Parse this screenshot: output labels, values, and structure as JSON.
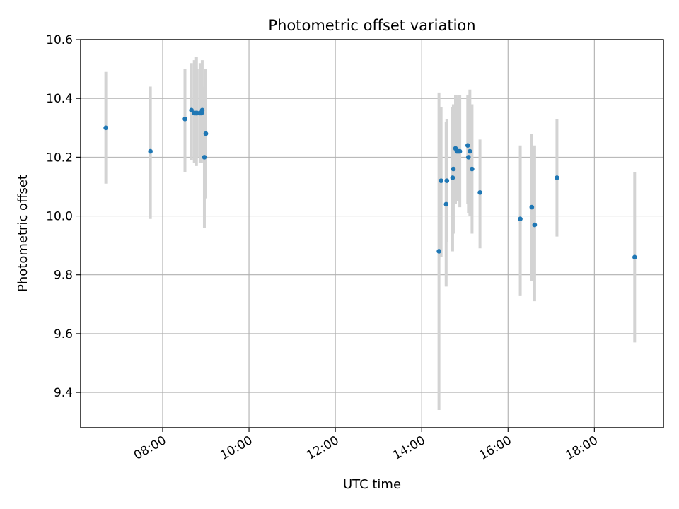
{
  "chart_data": {
    "type": "scatter",
    "title": "Photometric offset variation",
    "xlabel": "UTC time",
    "ylabel": "Photometric offset",
    "x_axis_kind": "time",
    "xlim": [
      "06:06",
      "19:36"
    ],
    "ylim": [
      9.28,
      10.6
    ],
    "x_ticks": [
      "08:00",
      "10:00",
      "12:00",
      "14:00",
      "16:00",
      "18:00"
    ],
    "y_ticks": [
      "9.4",
      "9.6",
      "9.8",
      "10.0",
      "10.2",
      "10.4",
      "10.6"
    ],
    "grid": true,
    "legend": "none",
    "tick_label_rotation": "30 degrees",
    "colors": {
      "point": "#1f77b4",
      "error_bar": "#d3d3d3",
      "grid": "#b0b0b0"
    },
    "series": [
      {
        "points": [
          {
            "x": "06:41",
            "y": 10.3,
            "err_low": 10.11,
            "err_high": 10.49
          },
          {
            "x": "07:43",
            "y": 10.22,
            "err_low": 9.99,
            "err_high": 10.44
          },
          {
            "x": "08:31",
            "y": 10.33,
            "err_low": 10.15,
            "err_high": 10.5
          },
          {
            "x": "08:40",
            "y": 10.36,
            "err_low": 10.19,
            "err_high": 10.52
          },
          {
            "x": "08:44",
            "y": 10.35,
            "err_low": 10.18,
            "err_high": 10.53
          },
          {
            "x": "08:46",
            "y": 10.35,
            "err_low": 10.18,
            "err_high": 10.54
          },
          {
            "x": "08:47",
            "y": 10.35,
            "err_low": 10.17,
            "err_high": 10.54
          },
          {
            "x": "08:48",
            "y": 10.35,
            "err_low": 10.2,
            "err_high": 10.5
          },
          {
            "x": "08:52",
            "y": 10.35,
            "err_low": 10.18,
            "err_high": 10.52
          },
          {
            "x": "08:54",
            "y": 10.35,
            "err_low": 10.18,
            "err_high": 10.51
          },
          {
            "x": "08:55",
            "y": 10.36,
            "err_low": 10.19,
            "err_high": 10.53
          },
          {
            "x": "08:58",
            "y": 10.2,
            "err_low": 9.96,
            "err_high": 10.44
          },
          {
            "x": "09:00",
            "y": 10.28,
            "err_low": 10.06,
            "err_high": 10.5
          },
          {
            "x": "14:24",
            "y": 9.88,
            "err_low": 9.34,
            "err_high": 10.42
          },
          {
            "x": "14:27",
            "y": 10.12,
            "err_low": 9.86,
            "err_high": 10.37
          },
          {
            "x": "14:34",
            "y": 10.04,
            "err_low": 9.76,
            "err_high": 10.32
          },
          {
            "x": "14:35",
            "y": 10.12,
            "err_low": 9.91,
            "err_high": 10.33
          },
          {
            "x": "14:43",
            "y": 10.13,
            "err_low": 9.88,
            "err_high": 10.37
          },
          {
            "x": "14:44",
            "y": 10.16,
            "err_low": 9.94,
            "err_high": 10.38
          },
          {
            "x": "14:47",
            "y": 10.23,
            "err_low": 10.04,
            "err_high": 10.41
          },
          {
            "x": "14:49",
            "y": 10.22,
            "err_low": 10.05,
            "err_high": 10.4
          },
          {
            "x": "14:51",
            "y": 10.22,
            "err_low": 10.05,
            "err_high": 10.41
          },
          {
            "x": "14:53",
            "y": 10.22,
            "err_low": 10.03,
            "err_high": 10.41
          },
          {
            "x": "15:04",
            "y": 10.24,
            "err_low": 10.04,
            "err_high": 10.41
          },
          {
            "x": "15:05",
            "y": 10.2,
            "err_low": 10.01,
            "err_high": 10.4
          },
          {
            "x": "15:07",
            "y": 10.22,
            "err_low": 10.0,
            "err_high": 10.43
          },
          {
            "x": "15:10",
            "y": 10.16,
            "err_low": 9.94,
            "err_high": 10.38
          },
          {
            "x": "15:21",
            "y": 10.08,
            "err_low": 9.89,
            "err_high": 10.26
          },
          {
            "x": "16:17",
            "y": 9.99,
            "err_low": 9.73,
            "err_high": 10.24
          },
          {
            "x": "16:33",
            "y": 10.03,
            "err_low": 9.78,
            "err_high": 10.28
          },
          {
            "x": "16:37",
            "y": 9.97,
            "err_low": 9.71,
            "err_high": 10.24
          },
          {
            "x": "17:08",
            "y": 10.13,
            "err_low": 9.93,
            "err_high": 10.33
          },
          {
            "x": "18:56",
            "y": 9.86,
            "err_low": 9.57,
            "err_high": 10.15
          }
        ]
      }
    ]
  }
}
